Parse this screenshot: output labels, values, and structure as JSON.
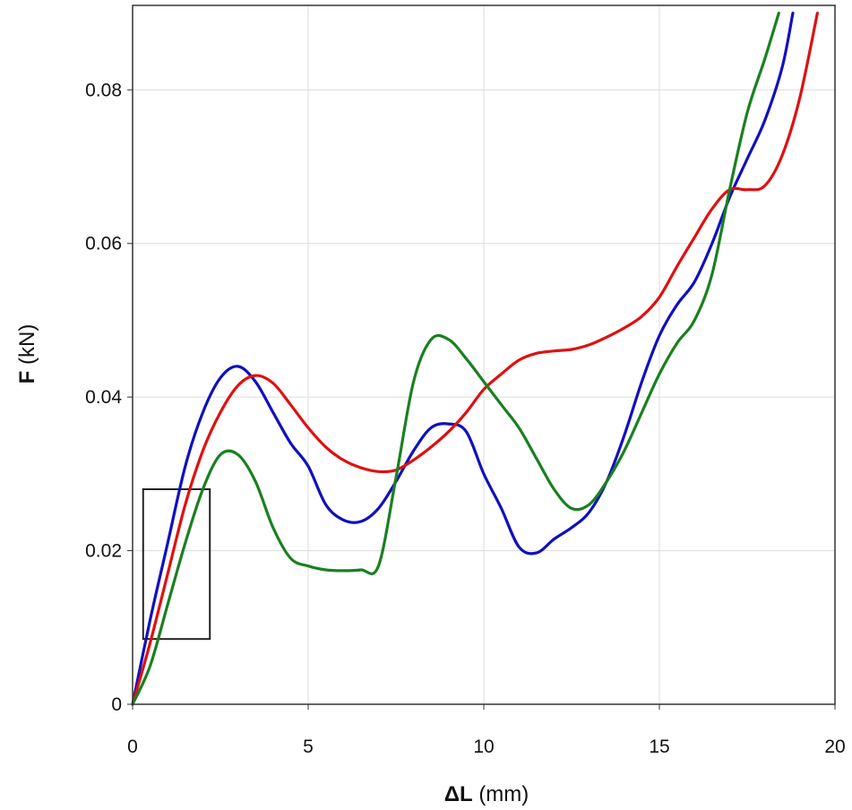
{
  "chart_data": {
    "type": "line",
    "xlabel_symbol": "ΔL",
    "xlabel_unit": "(mm)",
    "ylabel_symbol": "F",
    "ylabel_unit": "(kN)",
    "xlim": [
      0,
      20
    ],
    "ylim": [
      0,
      0.091
    ],
    "xticks": [
      0,
      5,
      10,
      15,
      20
    ],
    "xtick_labels": [
      "0",
      "5",
      "10",
      "15",
      "20"
    ],
    "yticks": [
      0,
      0.02,
      0.04,
      0.06,
      0.08
    ],
    "ytick_labels": [
      "0",
      "0.02",
      "0.04",
      "0.06",
      "0.08"
    ],
    "grid": true,
    "highlight_box": {
      "x": [
        0.3,
        2.2
      ],
      "y": [
        0.0085,
        0.028
      ]
    },
    "series": [
      {
        "color": "#1010c0",
        "x": [
          0,
          0.5,
          1,
          1.5,
          2,
          2.5,
          3,
          3.5,
          4,
          4.5,
          5,
          5.5,
          6,
          6.5,
          7,
          7.5,
          8,
          8.5,
          9,
          9.5,
          10,
          10.5,
          11,
          11.5,
          12,
          12.5,
          13,
          13.5,
          14,
          14.5,
          15,
          15.5,
          16,
          16.5,
          17,
          17.5,
          18,
          18.5,
          18.8
        ],
        "y": [
          0,
          0.011,
          0.021,
          0.031,
          0.038,
          0.0425,
          0.044,
          0.042,
          0.038,
          0.034,
          0.031,
          0.026,
          0.024,
          0.0238,
          0.0255,
          0.029,
          0.033,
          0.036,
          0.0365,
          0.0355,
          0.03,
          0.0255,
          0.0205,
          0.0197,
          0.0215,
          0.023,
          0.025,
          0.029,
          0.035,
          0.042,
          0.048,
          0.052,
          0.055,
          0.06,
          0.066,
          0.071,
          0.076,
          0.083,
          0.09
        ]
      },
      {
        "color": "#e01010",
        "x": [
          0,
          0.5,
          1,
          1.5,
          2,
          2.5,
          3,
          3.5,
          4,
          4.5,
          5,
          5.5,
          6,
          6.5,
          7,
          7.5,
          8,
          8.5,
          9,
          9.5,
          10,
          10.5,
          11,
          11.5,
          12,
          12.5,
          13,
          13.5,
          14,
          14.5,
          15,
          15.5,
          16,
          16.5,
          17,
          17.5,
          18,
          18.5,
          19,
          19.5
        ],
        "y": [
          0,
          0.008,
          0.017,
          0.026,
          0.033,
          0.038,
          0.0415,
          0.0428,
          0.0418,
          0.039,
          0.036,
          0.0335,
          0.0318,
          0.0308,
          0.0303,
          0.0305,
          0.0318,
          0.0335,
          0.0355,
          0.038,
          0.041,
          0.043,
          0.0448,
          0.0457,
          0.046,
          0.0462,
          0.0468,
          0.0478,
          0.049,
          0.0505,
          0.053,
          0.057,
          0.0608,
          0.0645,
          0.067,
          0.067,
          0.0675,
          0.0715,
          0.079,
          0.09
        ]
      },
      {
        "color": "#1a8020",
        "x": [
          0,
          0.5,
          1,
          1.5,
          2,
          2.5,
          3,
          3.5,
          4,
          4.5,
          5,
          5.5,
          6,
          6.5,
          7,
          7.5,
          8,
          8.5,
          9,
          9.5,
          10,
          10.5,
          11,
          11.5,
          12,
          12.5,
          13,
          13.5,
          14,
          14.5,
          15,
          15.5,
          16,
          16.5,
          17,
          17.5,
          18,
          18.4
        ],
        "y": [
          0,
          0.005,
          0.013,
          0.021,
          0.028,
          0.0325,
          0.0325,
          0.029,
          0.023,
          0.019,
          0.018,
          0.0175,
          0.0174,
          0.0175,
          0.018,
          0.0295,
          0.042,
          0.0475,
          0.0475,
          0.045,
          0.042,
          0.039,
          0.036,
          0.032,
          0.028,
          0.0255,
          0.026,
          0.029,
          0.033,
          0.038,
          0.043,
          0.047,
          0.05,
          0.056,
          0.067,
          0.077,
          0.084,
          0.09
        ]
      }
    ]
  }
}
